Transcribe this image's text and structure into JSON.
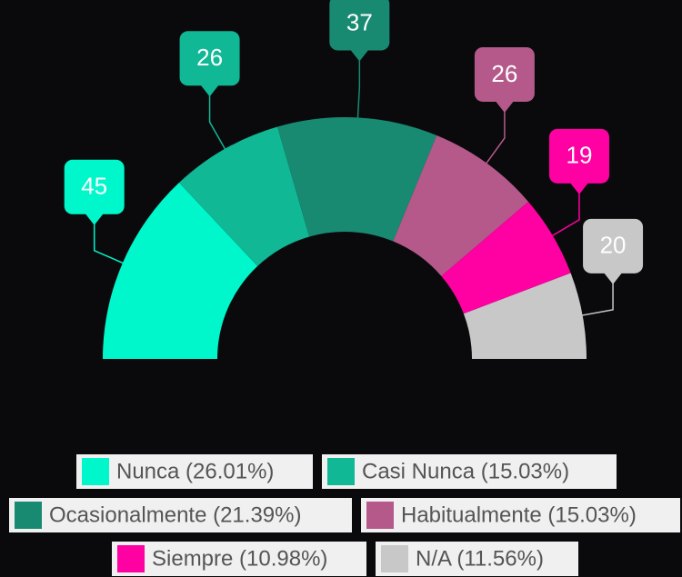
{
  "chart_data": {
    "type": "pie",
    "categories": [
      "Nunca (26.01%)",
      "Casi Nunca (15.03%)",
      "Ocasionalmente (21.39%)",
      "Habitualmente (15.03%)",
      "Siempre (10.98%)",
      "N/A (11.56%)"
    ],
    "values": [
      45,
      26,
      37,
      26,
      19,
      20
    ],
    "colors": [
      "#00f7cb",
      "#10b896",
      "#198a72",
      "#b5598b",
      "#ff00a2",
      "#c8c8c8"
    ]
  }
}
